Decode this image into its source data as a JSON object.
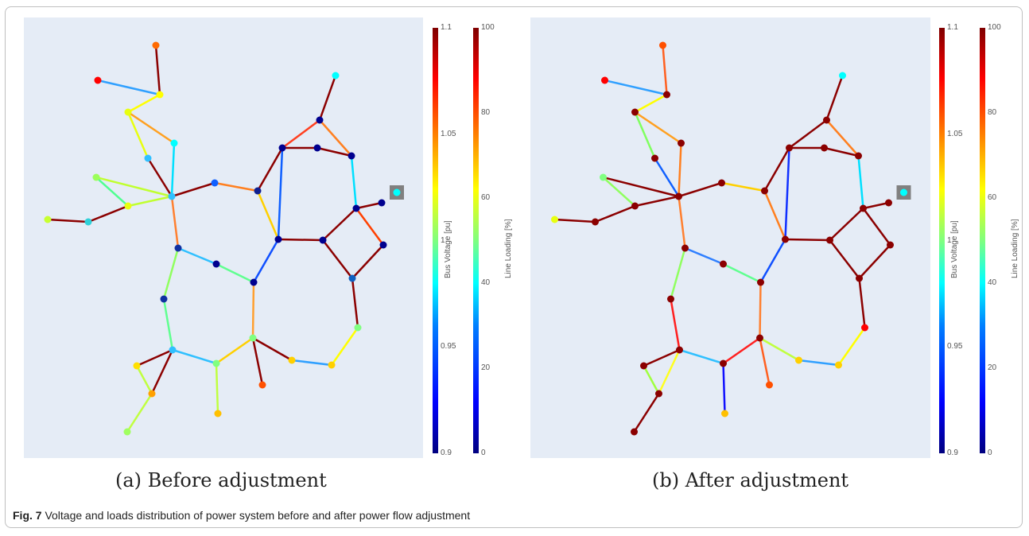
{
  "figure": {
    "label": "Fig. 7",
    "caption": "Voltage and loads distribution of power system before and after power flow adjustment"
  },
  "colorbars": {
    "voltage": {
      "title": "Bus Voltage [pu]",
      "ticks": [
        "1.1",
        "1.05",
        "1",
        "0.95",
        "0.9"
      ],
      "range": [
        0.9,
        1.1
      ]
    },
    "loading": {
      "title": "Line Loading [%]",
      "ticks": [
        "100",
        "80",
        "60",
        "40",
        "20",
        "0"
      ],
      "range": [
        0,
        100
      ]
    }
  },
  "colors": {
    "plot_bg": "#e5ecf6",
    "external_grid": "#808080"
  },
  "panels": [
    {
      "caption": "(a) Before adjustment",
      "bus_colors": [
        "#ff6a00",
        "#ff0000",
        "#ffff00",
        "#e8ff10",
        "#00ffff",
        "#30c0ff",
        "#30c0ff",
        "#9cff5a",
        "#e8ff10",
        "#c8ff30",
        "#30d0d8",
        "#1060ff",
        "#102090",
        "#1030a0",
        "#00008f",
        "#00008f",
        "#00008f",
        "#00008f",
        "#00ffff",
        "#00008f",
        "#00008f",
        "#00008f",
        "#00008f",
        "#00008f",
        "#1060c0",
        "#1030a0",
        "#00008f",
        "#30c0ff",
        "#80ff80",
        "#ffe000",
        "#ffa000",
        "#a0ff60",
        "#ffc000",
        "#80ff80",
        "#ffd000",
        "#ff5000",
        "#80ff80",
        "#ffd000",
        "#00008f",
        "#00ffff"
      ],
      "line_colors": [
        "#8b0000",
        "#30a0ff",
        "#ffff00",
        "#ffa020",
        "#e8ff10",
        "#00e0ff",
        "#8b0000",
        "#c0ff30",
        "#c0ff30",
        "#8b0000",
        "#8b0000",
        "#50ff90",
        "#8b0000",
        "#ff8020",
        "#ffd000",
        "#8b0000",
        "#ff4020",
        "#ff8020",
        "#8b0000",
        "#8b0000",
        "#8b0000",
        "#00e0ff",
        "#1060ff",
        "#8b0000",
        "#1050ff",
        "#8b0000",
        "#ff4000",
        "#8b0000",
        "#8b0000",
        "#8b0000",
        "#8b0000",
        "#ff8030",
        "#90ff60",
        "#30c0ff",
        "#60ff90",
        "#ffa030",
        "#60ff90",
        "#30c0ff",
        "#c0ff40",
        "#8b0000",
        "#c0ff40",
        "#8b0000",
        "#c0ff40",
        "#ffd000",
        "#8b0000"
      ]
    },
    {
      "caption": "(b) After adjustment",
      "bus_colors": [
        "#ff5000",
        "#ff0000",
        "#8b0000",
        "#8b0000",
        "#8b0000",
        "#8b0000",
        "#8b0000",
        "#80ff80",
        "#8b0000",
        "#e8ff10",
        "#8b0000",
        "#8b0000",
        "#8b0000",
        "#8b0000",
        "#8b0000",
        "#8b0000",
        "#8b0000",
        "#8b0000",
        "#00ffff",
        "#8b0000",
        "#8b0000",
        "#8b0000",
        "#8b0000",
        "#8b0000",
        "#8b0000",
        "#8b0000",
        "#8b0000",
        "#8b0000",
        "#8b0000",
        "#8b0000",
        "#8b0000",
        "#8b0000",
        "#ffc000",
        "#8b0000",
        "#ffd000",
        "#ff5000",
        "#ff0000",
        "#ffd000",
        "#8b0000",
        "#00ffff"
      ],
      "line_colors": [
        "#ff6020",
        "#30a0ff",
        "#ffff00",
        "#ffa020",
        "#80ff60",
        "#ff8020",
        "#1060ff",
        "#8b0000",
        "#8b0000",
        "#8b0000",
        "#8b0000",
        "#90ff60",
        "#8b0000",
        "#ffd000",
        "#ff8020",
        "#8b0000",
        "#8b0000",
        "#ff8020",
        "#8b0000",
        "#8b0000",
        "#8b0000",
        "#00e0ff",
        "#1030ff",
        "#8b0000",
        "#1050ff",
        "#8b0000",
        "#8b0000",
        "#8b0000",
        "#8b0000",
        "#8b0000",
        "#8b0000",
        "#ff8030",
        "#90ff60",
        "#3080ff",
        "#60ff90",
        "#ff8030",
        "#ff2020",
        "#30c0ff",
        "#1010ff",
        "#8b0000",
        "#a0ff40",
        "#ffff20",
        "#8b0000",
        "#ff2020",
        "#c0ff40"
      ]
    }
  ]
}
